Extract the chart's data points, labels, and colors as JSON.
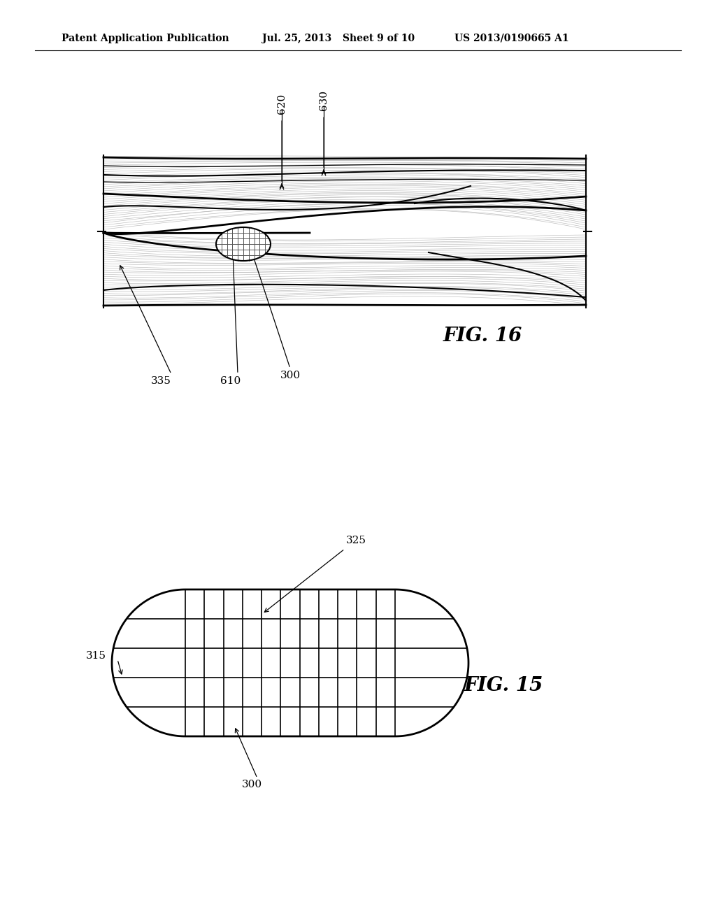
{
  "bg_color": "#ffffff",
  "header_text": "Patent Application Publication",
  "header_date": "Jul. 25, 2013",
  "header_sheet": "Sheet 9 of 10",
  "header_patent": "US 2013/0190665 A1",
  "fig15_label": "FIG. 15",
  "fig16_label": "FIG. 16",
  "fig15_ref_300": "300",
  "fig15_ref_315": "315",
  "fig15_ref_325": "325",
  "fig16_ref_300": "300",
  "fig16_ref_335": "335",
  "fig16_ref_610": "610",
  "fig16_ref_620": "620",
  "fig16_ref_630": "630"
}
